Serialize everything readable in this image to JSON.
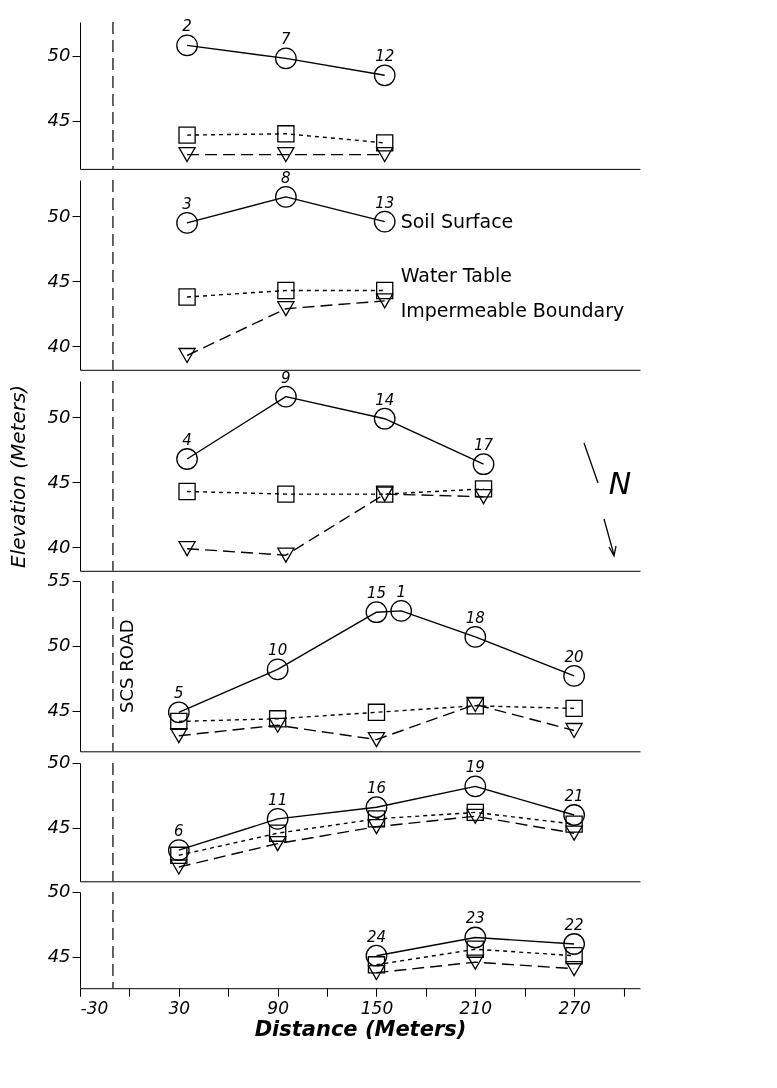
{
  "chart_data": [
    {
      "type": "line",
      "xlim": [
        -30,
        310
      ],
      "ylim": [
        41.3,
        52.6
      ],
      "yticks": [
        45,
        50
      ],
      "tick_labels": "y",
      "grid": false,
      "series": [
        {
          "color": "#000000",
          "marker": "circle",
          "line_style": "solid",
          "x": [
            35,
            95,
            155
          ],
          "values": [
            50.8,
            49.8,
            48.5
          ]
        },
        {
          "color": "#000000",
          "marker": "square",
          "line_style": "dotted",
          "x": [
            35,
            95,
            155
          ],
          "values": [
            43.9,
            44.0,
            43.3
          ]
        },
        {
          "color": "#000000",
          "marker": "triangle",
          "line_style": "dashed",
          "x": [
            35,
            95,
            155
          ],
          "values": [
            42.4,
            42.4,
            42.4
          ]
        }
      ],
      "ref_lines": [
        {
          "axis": "x",
          "value": -10,
          "line_style": "dashed"
        }
      ],
      "annotations": [
        {
          "text": "2",
          "x": 35,
          "y": 50.8
        },
        {
          "text": "7",
          "x": 95,
          "y": 49.8
        },
        {
          "text": "12",
          "x": 155,
          "y": 48.5
        }
      ]
    },
    {
      "type": "line",
      "xlim": [
        -30,
        310
      ],
      "ylim": [
        38.2,
        52.8
      ],
      "yticks": [
        40,
        45,
        50
      ],
      "tick_labels": "y",
      "grid": false,
      "series": [
        {
          "name": "Soil Surface",
          "color": "#000000",
          "marker": "circle",
          "line_style": "solid",
          "x": [
            35,
            95,
            155
          ],
          "values": [
            49.5,
            51.5,
            49.6
          ]
        },
        {
          "name": "Water Table",
          "color": "#000000",
          "marker": "square",
          "line_style": "dotted",
          "x": [
            35,
            95,
            155
          ],
          "values": [
            43.8,
            44.3,
            44.3
          ]
        },
        {
          "name": "Impermeable Boundary",
          "color": "#000000",
          "marker": "triangle",
          "line_style": "dashed",
          "x": [
            35,
            95,
            155
          ],
          "values": [
            39.3,
            42.9,
            43.5
          ]
        }
      ],
      "ref_lines": [
        {
          "axis": "x",
          "value": -10,
          "line_style": "dashed"
        }
      ],
      "annotations": [
        {
          "text": "3",
          "x": 35,
          "y": 49.5
        },
        {
          "text": "8",
          "x": 95,
          "y": 51.5
        },
        {
          "text": "13",
          "x": 155,
          "y": 49.6
        }
      ]
    },
    {
      "type": "line",
      "xlim": [
        -30,
        310
      ],
      "ylim": [
        38.2,
        52.8
      ],
      "yticks": [
        40,
        45,
        50
      ],
      "tick_labels": "y",
      "grid": false,
      "ylabel": "Elevation (Meters)",
      "series": [
        {
          "color": "#000000",
          "marker": "circle",
          "line_style": "solid",
          "x": [
            35,
            95,
            155,
            215
          ],
          "values": [
            46.8,
            51.6,
            49.9,
            46.4
          ]
        },
        {
          "color": "#000000",
          "marker": "square",
          "line_style": "dotted",
          "x": [
            35,
            95,
            155,
            215
          ],
          "values": [
            44.3,
            44.1,
            44.1,
            44.5
          ]
        },
        {
          "color": "#000000",
          "marker": "triangle",
          "line_style": "dashed",
          "x": [
            35,
            95,
            155,
            215
          ],
          "values": [
            39.9,
            39.4,
            44.1,
            43.9
          ]
        }
      ],
      "ref_lines": [
        {
          "axis": "x",
          "value": -10,
          "line_style": "dashed"
        }
      ],
      "annotations": [
        {
          "text": "4",
          "x": 35,
          "y": 46.8
        },
        {
          "text": "9",
          "x": 95,
          "y": 51.6
        },
        {
          "text": "14",
          "x": 155,
          "y": 49.9
        },
        {
          "text": "17",
          "x": 215,
          "y": 46.4
        },
        "N"
      ]
    },
    {
      "type": "line",
      "xlim": [
        -30,
        310
      ],
      "ylim": [
        41.9,
        55
      ],
      "yticks": [
        45,
        50,
        55
      ],
      "tick_labels": "y",
      "grid": false,
      "series": [
        {
          "color": "#000000",
          "marker": "circle",
          "line_style": "solid",
          "x": [
            30,
            90,
            150,
            165,
            210,
            270
          ],
          "values": [
            44.9,
            48.2,
            52.6,
            52.7,
            50.7,
            47.7
          ]
        },
        {
          "color": "#000000",
          "marker": "square",
          "line_style": "dotted",
          "x": [
            30,
            90,
            150,
            210,
            270
          ],
          "values": [
            44.2,
            44.4,
            44.9,
            45.4,
            45.2
          ]
        },
        {
          "color": "#000000",
          "marker": "triangle",
          "line_style": "dashed",
          "x": [
            30,
            90,
            150,
            210,
            270
          ],
          "values": [
            43.1,
            43.9,
            42.8,
            45.5,
            43.5
          ]
        }
      ],
      "ref_lines": [
        {
          "axis": "x",
          "value": -10,
          "line_style": "dashed",
          "label": "SCS ROAD"
        }
      ],
      "annotations": [
        {
          "text": "5",
          "x": 30,
          "y": 44.9
        },
        {
          "text": "10",
          "x": 90,
          "y": 48.2
        },
        {
          "text": "15",
          "x": 150,
          "y": 52.6
        },
        {
          "text": "1",
          "x": 165,
          "y": 52.7
        },
        {
          "text": "18",
          "x": 210,
          "y": 50.7
        },
        {
          "text": "20",
          "x": 270,
          "y": 47.7
        }
      ]
    },
    {
      "type": "line",
      "xlim": [
        -30,
        310
      ],
      "ylim": [
        40.9,
        50
      ],
      "yticks": [
        45,
        50
      ],
      "tick_labels": "y",
      "grid": false,
      "series": [
        {
          "color": "#000000",
          "marker": "circle",
          "line_style": "solid",
          "x": [
            30,
            90,
            150,
            210,
            270
          ],
          "values": [
            43.3,
            45.7,
            46.6,
            48.2,
            46.0
          ]
        },
        {
          "color": "#000000",
          "marker": "square",
          "line_style": "dotted",
          "x": [
            30,
            90,
            150,
            210,
            270
          ],
          "values": [
            42.9,
            44.6,
            45.7,
            46.2,
            45.3
          ]
        },
        {
          "color": "#000000",
          "marker": "triangle",
          "line_style": "dashed",
          "x": [
            30,
            90,
            150,
            210,
            270
          ],
          "values": [
            42.0,
            43.8,
            45.1,
            45.9,
            44.6
          ]
        }
      ],
      "ref_lines": [
        {
          "axis": "x",
          "value": -10,
          "line_style": "dashed"
        }
      ],
      "annotations": [
        {
          "text": "6",
          "x": 30,
          "y": 43.3
        },
        {
          "text": "11",
          "x": 90,
          "y": 45.7
        },
        {
          "text": "16",
          "x": 150,
          "y": 46.6
        },
        {
          "text": "19",
          "x": 210,
          "y": 48.2
        },
        {
          "text": "21",
          "x": 270,
          "y": 46.0
        }
      ]
    },
    {
      "type": "line",
      "xlim": [
        -30,
        310
      ],
      "ylim": [
        42.6,
        50
      ],
      "yticks": [
        45,
        50
      ],
      "grid": false,
      "xlabel": "Distance (Meters)",
      "xticks": [
        -30,
        {
          "value": 0,
          "label": null
        },
        30,
        {
          "value": 60,
          "label": null
        },
        90,
        {
          "value": 120,
          "label": null
        },
        150,
        {
          "value": 180,
          "label": null
        },
        210,
        {
          "value": 240,
          "label": null
        },
        270,
        {
          "value": 300,
          "label": null
        }
      ],
      "series": [
        {
          "color": "#000000",
          "marker": "circle",
          "line_style": "solid",
          "x": [
            150,
            210,
            270
          ],
          "values": [
            45.1,
            46.5,
            46.0
          ]
        },
        {
          "color": "#000000",
          "marker": "square",
          "line_style": "dotted",
          "x": [
            150,
            210,
            270
          ],
          "values": [
            44.4,
            45.6,
            45.1
          ]
        },
        {
          "color": "#000000",
          "marker": "triangle",
          "line_style": "dashed",
          "x": [
            150,
            210,
            270
          ],
          "values": [
            43.8,
            44.6,
            44.1
          ]
        }
      ],
      "ref_lines": [
        {
          "axis": "x",
          "value": -10,
          "line_style": "dashed"
        }
      ],
      "annotations": [
        {
          "text": "24",
          "x": 150,
          "y": 45.1
        },
        {
          "text": "23",
          "x": 210,
          "y": 46.5
        },
        {
          "text": "22",
          "x": 270,
          "y": 46.0
        }
      ]
    }
  ]
}
